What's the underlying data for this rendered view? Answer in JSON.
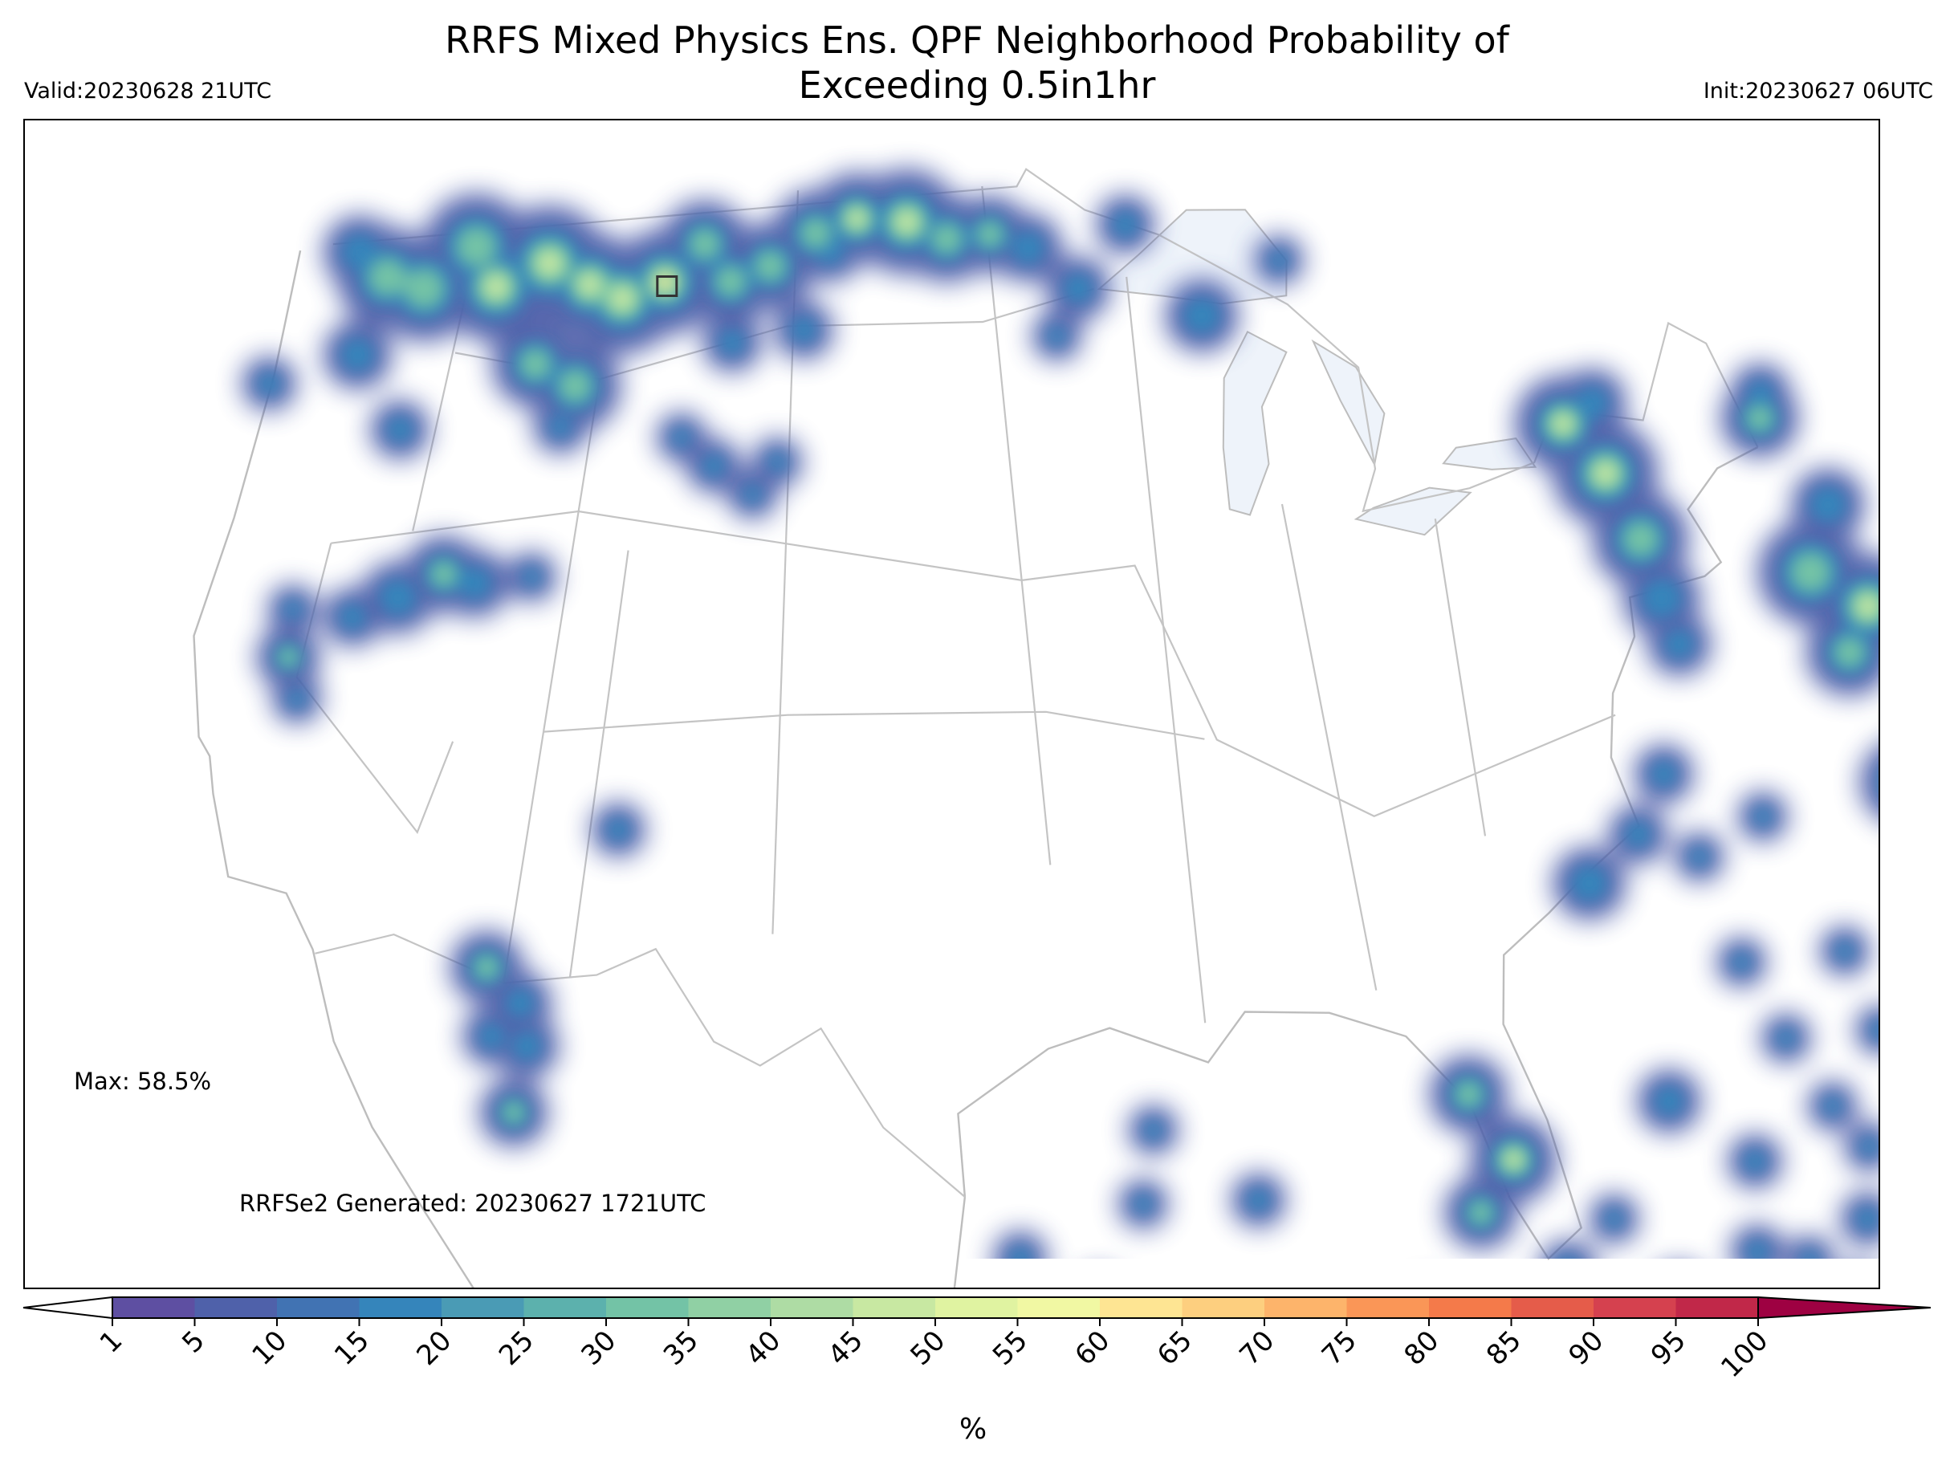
{
  "title_line1": "RRFS Mixed Physics Ens. QPF Neighborhood Probability of",
  "title_line2": "Exceeding 0.5in1hr",
  "valid": "Valid:20230628 21UTC",
  "init": "Init:20230627 06UTC",
  "max_label": "Max: 58.5%",
  "generated": "RRFSe2 Generated: 20230627 1721UTC",
  "colorbar": {
    "unit": "%",
    "ticks": [
      "1",
      "5",
      "10",
      "15",
      "20",
      "25",
      "30",
      "35",
      "40",
      "45",
      "50",
      "55",
      "60",
      "65",
      "70",
      "75",
      "80",
      "85",
      "90",
      "95",
      "100"
    ],
    "colors": [
      "#5e4fa2",
      "#4f61aa",
      "#4173b3",
      "#3585bb",
      "#4a9bb5",
      "#5cb1ad",
      "#73c3a6",
      "#90d0a4",
      "#aedca4",
      "#c8e8a2",
      "#e0f3a1",
      "#f1f8a3",
      "#fee593",
      "#fdcf7f",
      "#fdb46b",
      "#fa9657",
      "#f47a4a",
      "#e55c4a",
      "#d5414f",
      "#c12849",
      "#9e0142"
    ],
    "extend": "both"
  },
  "map": {
    "max_marker": {
      "lon": -108.9,
      "lat": 47.0
    },
    "blobs": [
      [
        -122.0,
        48.7,
        0.55,
        1
      ],
      [
        -120.5,
        48.0,
        0.85,
        2
      ],
      [
        -118.8,
        47.6,
        0.9,
        2
      ],
      [
        -117.0,
        48.4,
        0.9,
        2
      ],
      [
        -115.8,
        47.4,
        0.95,
        3
      ],
      [
        -113.8,
        47.8,
        1.0,
        3
      ],
      [
        -112.0,
        47.2,
        0.9,
        3
      ],
      [
        -110.6,
        46.8,
        0.95,
        3
      ],
      [
        -109.0,
        47.1,
        0.9,
        4
      ],
      [
        -107.6,
        47.9,
        0.7,
        2
      ],
      [
        -106.4,
        47.0,
        0.7,
        2
      ],
      [
        -104.9,
        47.3,
        0.7,
        2
      ],
      [
        -103.2,
        48.0,
        0.7,
        2
      ],
      [
        -101.6,
        48.3,
        0.75,
        3
      ],
      [
        -99.6,
        48.2,
        0.9,
        3
      ],
      [
        -98.0,
        47.8,
        0.7,
        2
      ],
      [
        -96.3,
        47.9,
        0.6,
        2
      ],
      [
        -94.8,
        47.6,
        0.5,
        1
      ],
      [
        -111.9,
        44.9,
        0.75,
        2
      ],
      [
        -113.6,
        45.5,
        0.7,
        2
      ],
      [
        -120.9,
        46.3,
        0.5,
        1
      ],
      [
        -118.4,
        44.4,
        0.4,
        1
      ],
      [
        -124.3,
        46.0,
        0.35,
        1
      ],
      [
        -112.2,
        44.0,
        0.35,
        1
      ],
      [
        -106.1,
        45.6,
        0.4,
        1
      ],
      [
        -103.4,
        45.8,
        0.4,
        1
      ],
      [
        -102.6,
        47.6,
        0.45,
        1
      ],
      [
        -107.6,
        43.5,
        0.3,
        1
      ],
      [
        -106.3,
        42.8,
        0.35,
        1
      ],
      [
        -104.0,
        42.8,
        0.3,
        1
      ],
      [
        -104.8,
        42.1,
        0.3,
        1
      ],
      [
        -92.9,
        46.7,
        0.45,
        1
      ],
      [
        -88.2,
        46.2,
        0.55,
        1
      ],
      [
        -84.9,
        47.6,
        0.3,
        1
      ],
      [
        -90.9,
        48.2,
        0.4,
        1
      ],
      [
        -93.8,
        45.6,
        0.3,
        1
      ],
      [
        -120.5,
        39.5,
        0.45,
        2
      ],
      [
        -120.8,
        40.6,
        0.3,
        1
      ],
      [
        -119.8,
        38.5,
        0.3,
        1
      ],
      [
        -117.0,
        40.5,
        0.55,
        1
      ],
      [
        -115.5,
        40.9,
        0.6,
        2
      ],
      [
        -114.3,
        40.6,
        0.5,
        1
      ],
      [
        -118.5,
        40.2,
        0.4,
        1
      ],
      [
        -112.3,
        40.6,
        0.3,
        1
      ],
      [
        -108.1,
        34.6,
        0.35,
        1
      ],
      [
        -111.6,
        31.7,
        0.55,
        2
      ],
      [
        -110.4,
        30.8,
        0.45,
        1
      ],
      [
        -111.1,
        30.1,
        0.4,
        1
      ],
      [
        -110.0,
        29.8,
        0.45,
        1
      ],
      [
        -110.1,
        28.3,
        0.5,
        2
      ],
      [
        -106.4,
        22.6,
        0.4,
        2
      ],
      [
        -74.8,
        44.6,
        0.8,
        3
      ],
      [
        -73.6,
        43.6,
        0.9,
        3
      ],
      [
        -72.9,
        42.2,
        0.8,
        2
      ],
      [
        -73.4,
        45.2,
        0.5,
        1
      ],
      [
        -72.7,
        40.9,
        0.6,
        1
      ],
      [
        -72.5,
        39.9,
        0.45,
        1
      ],
      [
        -66.5,
        45.6,
        0.6,
        2
      ],
      [
        -64.8,
        43.9,
        0.55,
        1
      ],
      [
        -66.5,
        42.2,
        0.9,
        2
      ],
      [
        -64.6,
        41.7,
        0.9,
        3
      ],
      [
        -66.0,
        40.5,
        0.7,
        2
      ],
      [
        -66.1,
        46.2,
        0.4,
        1
      ],
      [
        -64.2,
        38.4,
        0.6,
        1
      ],
      [
        -65.6,
        37.7,
        0.7,
        2
      ],
      [
        -63.8,
        36.5,
        0.7,
        2
      ],
      [
        -64.4,
        35.4,
        0.7,
        2
      ],
      [
        -65.5,
        34.0,
        0.6,
        2
      ],
      [
        -64.0,
        33.6,
        0.6,
        2
      ],
      [
        -66.3,
        31.7,
        0.55,
        1
      ],
      [
        -65.0,
        30.8,
        0.6,
        2
      ],
      [
        -66.0,
        30.0,
        0.5,
        2
      ],
      [
        -67.1,
        28.8,
        0.45,
        1
      ],
      [
        -66.2,
        27.5,
        0.55,
        1
      ],
      [
        -66.0,
        26.0,
        0.4,
        1
      ],
      [
        -68.4,
        27.2,
        0.4,
        1
      ],
      [
        -74.3,
        36.8,
        0.4,
        1
      ],
      [
        -75.7,
        35.3,
        0.4,
        1
      ],
      [
        -73.8,
        35.0,
        0.3,
        1
      ],
      [
        -77.7,
        34.0,
        0.55,
        1
      ],
      [
        -71.2,
        36.2,
        0.3,
        1
      ],
      [
        -73.3,
        32.7,
        0.3,
        1
      ],
      [
        -72.5,
        31.1,
        0.3,
        1
      ],
      [
        -69.7,
        33.4,
        0.3,
        1
      ],
      [
        -69.3,
        31.7,
        0.3,
        1
      ],
      [
        -70.8,
        28.9,
        0.3,
        1
      ],
      [
        -71.6,
        29.7,
        0.3,
        1
      ],
      [
        -82.7,
        28.8,
        0.6,
        2
      ],
      [
        -81.7,
        27.4,
        0.7,
        3
      ],
      [
        -82.9,
        26.1,
        0.55,
        2
      ],
      [
        -80.7,
        25.0,
        0.4,
        1
      ],
      [
        -79.5,
        24.0,
        0.4,
        1
      ],
      [
        -77.7,
        24.7,
        0.45,
        1
      ],
      [
        -76.2,
        23.4,
        0.4,
        1
      ],
      [
        -74.5,
        23.6,
        0.4,
        1
      ],
      [
        -73.2,
        24.2,
        0.45,
        1
      ],
      [
        -71.2,
        23.3,
        0.45,
        1
      ],
      [
        -69.1,
        23.8,
        0.4,
        1
      ],
      [
        -67.7,
        23.1,
        0.35,
        1
      ],
      [
        -84.8,
        23.6,
        0.5,
        1
      ],
      [
        -87.2,
        23.2,
        0.4,
        1
      ],
      [
        -84.3,
        21.9,
        0.35,
        1
      ],
      [
        -75.1,
        26.0,
        0.35,
        1
      ],
      [
        -72.4,
        25.5,
        0.3,
        1
      ],
      [
        -79.1,
        26.3,
        0.3,
        1
      ],
      [
        -76.7,
        29.2,
        0.45,
        1
      ],
      [
        -74.5,
        28.1,
        0.35,
        1
      ],
      [
        -71.5,
        27.2,
        0.35,
        1
      ],
      [
        -73.6,
        26.0,
        0.3,
        1
      ],
      [
        -95.7,
        24.5,
        0.35,
        1
      ],
      [
        -95.8,
        23.4,
        0.5,
        1
      ],
      [
        -93.6,
        23.6,
        0.35,
        1
      ],
      [
        -92.3,
        25.8,
        0.3,
        1
      ],
      [
        -89.1,
        26.0,
        0.35,
        1
      ],
      [
        -92.1,
        23.0,
        0.3,
        1
      ],
      [
        -91.9,
        27.5,
        0.3,
        1
      ]
    ]
  }
}
